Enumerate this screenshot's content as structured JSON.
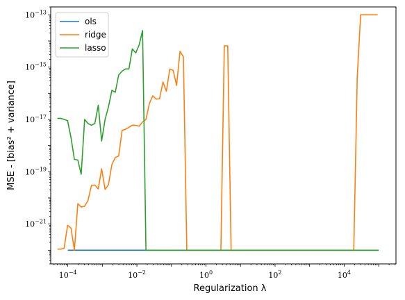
{
  "chart_data": {
    "type": "line",
    "xscale": "log",
    "yscale": "log",
    "xlabel": "Regularization λ",
    "ylabel": "MSE - [bias² + variance]",
    "x_ticks": [
      {
        "value": 0.0001,
        "base": "10",
        "exp": "−4"
      },
      {
        "value": 0.01,
        "base": "10",
        "exp": "−2"
      },
      {
        "value": 1,
        "base": "10",
        "exp": "0"
      },
      {
        "value": 100,
        "base": "10",
        "exp": "2"
      },
      {
        "value": 10000,
        "base": "10",
        "exp": "4"
      }
    ],
    "y_ticks": [
      {
        "value": 1e-21,
        "base": "10",
        "exp": "−21"
      },
      {
        "value": 1e-19,
        "base": "10",
        "exp": "−19"
      },
      {
        "value": 1e-17,
        "base": "10",
        "exp": "−17"
      },
      {
        "value": 1e-15,
        "base": "10",
        "exp": "−15"
      },
      {
        "value": 1e-13,
        "base": "10",
        "exp": "−13"
      }
    ],
    "xlim": [
      3.2e-05,
      316227
    ],
    "ylim": [
      3e-23,
      2e-13
    ],
    "grid": false,
    "legend_position": "top-left",
    "series": [
      {
        "name": "ols",
        "color": "#1f77b4",
        "x": [
          0.0001,
          100000
        ],
        "y": [
          1e-22,
          1e-22
        ]
      },
      {
        "name": "ridge",
        "color": "#ff7f0e",
        "x": [
          5e-05,
          6.25e-05,
          7.85e-05,
          9.85e-05,
          0.000124,
          0.000155,
          0.000195,
          0.000244,
          0.000307,
          0.000385,
          0.000483,
          0.000606,
          0.000761,
          0.000955,
          0.0012,
          0.0015,
          0.00189,
          0.00237,
          0.00297,
          0.00373,
          0.00468,
          0.00588,
          0.00737,
          0.00926,
          0.0116,
          0.0146,
          0.0183,
          0.0229,
          0.0288,
          0.0361,
          0.0453,
          0.0569,
          0.0714,
          0.0896,
          0.112,
          0.141,
          0.177,
          0.222,
          0.279,
          0.35,
          0.44,
          0.552,
          0.692,
          0.869,
          1.09,
          1.37,
          1.72,
          2.15,
          2.7,
          3.39,
          4.26,
          5.34,
          6.7,
          8.41,
          10.6,
          13.3,
          16.6,
          20.9,
          26.2,
          32.9,
          41.3,
          51.8,
          65,
          81.6,
          102,
          128,
          161,
          202,
          254,
          319,
          400,
          502,
          630,
          791,
          993,
          1250,
          1560,
          1960,
          2460,
          3090,
          3880,
          4870,
          6110,
          7670,
          9630,
          12100,
          15200,
          19000,
          23900,
          30000,
          37600,
          47200,
          59300,
          74400,
          93400
        ],
        "y": [
          1.1e-22,
          1.1e-22,
          1.2e-22,
          9e-22,
          7e-22,
          1e-22,
          6e-21,
          4.5e-21,
          4.8e-21,
          8e-21,
          3e-20,
          3.1e-20,
          2.2e-20,
          1.3e-19,
          2.1e-20,
          3.2e-20,
          1.9e-19,
          3.5e-19,
          4e-19,
          3.8e-18,
          4.2e-18,
          5e-18,
          6e-18,
          6e-18,
          5.5e-18,
          8e-18,
          1e-17,
          4e-17,
          8e-17,
          6e-17,
          6.2e-17,
          2.7e-16,
          1.2e-16,
          8.5e-16,
          7.5e-16,
          2e-16,
          4e-15,
          2.5e-15,
          1e-22,
          1e-22,
          1e-22,
          1e-22,
          1e-22,
          1e-22,
          1e-22,
          1e-22,
          1e-22,
          1e-22,
          1e-22,
          6.5e-15,
          6.5e-15,
          1e-22,
          1e-22,
          1e-22,
          1e-22,
          1e-22,
          1e-22,
          1e-22,
          1e-22,
          1e-22,
          1e-22,
          1e-22,
          1e-22,
          1e-22,
          1e-22,
          1e-22,
          1e-22,
          1e-22,
          1e-22,
          1e-22,
          1e-22,
          1e-22,
          1e-22,
          1e-22,
          1e-22,
          1e-22,
          1e-22,
          1e-22,
          1e-22,
          1e-22,
          1e-22,
          1e-22,
          1e-22,
          1e-22,
          1e-22,
          1e-22,
          1e-22,
          1e-22,
          4e-16,
          1e-13,
          1e-13,
          1e-13,
          1e-13,
          1e-13,
          1e-13
        ]
      },
      {
        "name": "lasso",
        "color": "#2ca02c",
        "x": [
          5e-05,
          6.25e-05,
          7.85e-05,
          9.85e-05,
          0.000124,
          0.000155,
          0.000195,
          0.000244,
          0.000307,
          0.000385,
          0.000483,
          0.000606,
          0.000761,
          0.000955,
          0.0012,
          0.0015,
          0.00189,
          0.00237,
          0.00297,
          0.00373,
          0.00468,
          0.00588,
          0.00737,
          0.00926,
          0.0116,
          0.0146,
          0.0183,
          0.0229,
          0.0288,
          0.0361,
          0.0453,
          0.0569,
          0.0714,
          0.0896,
          0.112,
          0.141,
          0.177,
          0.222,
          0.279,
          0.35,
          0.44,
          0.552,
          0.692,
          0.869,
          100000
        ],
        "y": [
          1.1e-17,
          1.1e-17,
          1e-17,
          9e-18,
          2e-18,
          3e-19,
          2.8e-19,
          8e-20,
          1e-17,
          7e-18,
          6e-18,
          7e-18,
          3.5e-17,
          1.5e-18,
          1e-17,
          3e-17,
          1.3e-16,
          1.1e-16,
          5e-16,
          7e-16,
          8.5e-16,
          8.5e-16,
          5e-15,
          3.5e-15,
          7e-15,
          2.5e-14,
          1e-22,
          1e-22,
          1e-22,
          1e-22,
          1e-22,
          1e-22,
          1e-22,
          1e-22,
          1e-22,
          1e-22,
          1e-22,
          1e-22,
          1e-22,
          1e-22,
          1e-22,
          1e-22,
          1e-22,
          1e-22,
          1e-22
        ]
      }
    ]
  }
}
